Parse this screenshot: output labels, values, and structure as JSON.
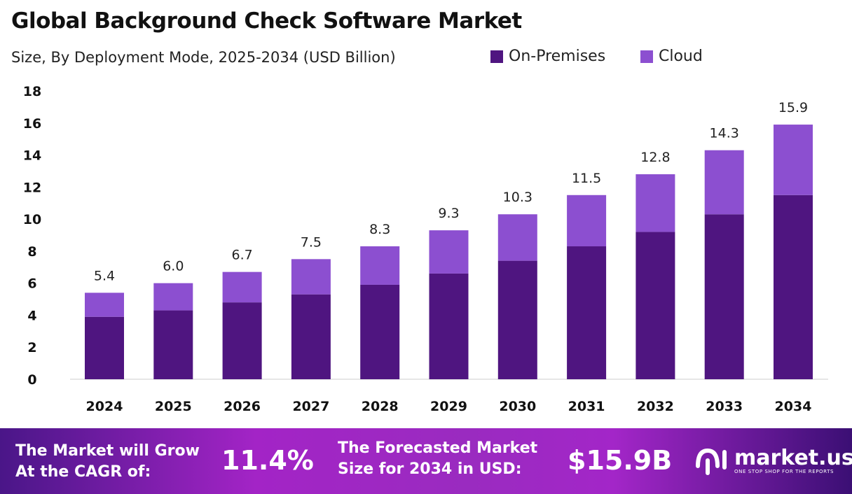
{
  "chart_data": {
    "type": "bar",
    "stacked": true,
    "title": "Global Background Check Software Market",
    "subtitle": "Size, By Deployment Mode, 2025-2034 (USD Billion)",
    "categories": [
      "2024",
      "2025",
      "2026",
      "2027",
      "2028",
      "2029",
      "2030",
      "2031",
      "2032",
      "2033",
      "2034"
    ],
    "series": [
      {
        "name": "On-Premises",
        "color": "#4f1580",
        "values": [
          3.9,
          4.3,
          4.8,
          5.3,
          5.9,
          6.6,
          7.4,
          8.3,
          9.2,
          10.3,
          11.5
        ]
      },
      {
        "name": "Cloud",
        "color": "#8c4fd0",
        "values": [
          1.5,
          1.7,
          1.9,
          2.2,
          2.4,
          2.7,
          2.9,
          3.2,
          3.6,
          4.0,
          4.4
        ]
      }
    ],
    "totals": [
      "5.4",
      "6.0",
      "6.7",
      "7.5",
      "8.3",
      "9.3",
      "10.3",
      "11.5",
      "12.8",
      "14.3",
      "15.9"
    ],
    "ylim": [
      0,
      18
    ],
    "yticks": [
      "0",
      "2",
      "4",
      "6",
      "8",
      "10",
      "12",
      "14",
      "16",
      "18"
    ],
    "grid": false,
    "legend": "top-right"
  },
  "banner": {
    "cagr_label_1": "The Market will Grow",
    "cagr_label_2": "At the CAGR of:",
    "cagr_value": "11.4%",
    "forecast_label_1": "The Forecasted Market",
    "forecast_label_2": "Size for 2034 in USD:",
    "forecast_value": "$15.9B",
    "logo_name": "market.us",
    "logo_tagline": "ONE STOP SHOP FOR THE REPORTS"
  }
}
